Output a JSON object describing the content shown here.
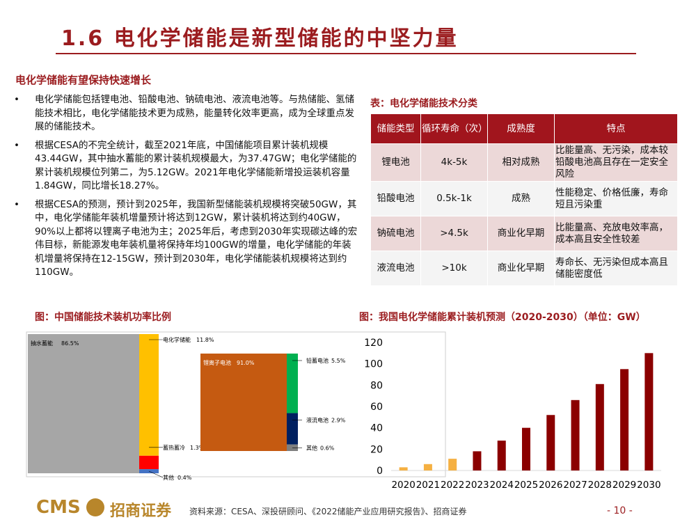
{
  "header": {
    "title": "1.6 电化学储能是新型储能的中坚力量"
  },
  "section": {
    "title": "电化学储能有望保持快速增长",
    "bullets": [
      "电化学储能包括锂电池、铅酸电池、钠硫电池、液流电池等。与热储能、氢储能技术相比，电化学储能技术更为成熟，能量转化效率更高，成为全球重点发展的储能技术。",
      "根据CESA的不完全统计，截至2021年底，中国储能项目累计装机规模43.44GW，其中抽水蓄能的累计装机规模最大，为37.47GW；电化学储能的累计装机规模位列第二，为5.12GW。2021年电化学储能新增投运装机容量1.84GW，同比增长18.27%。",
      "根据CESA的预测，预计到2025年，我国新型储能装机规模将突破50GW，其中，电化学储能年装机增量预计将达到12GW，累计装机将达到约40GW，90%以上都将以锂离子电池为主；2025年后，考虑到2030年实现碳达峰的宏伟目标，新能源发电年装机量将保持年均100GW的增量，电化学储能的年装机增量将保持在12-15GW，预计到2030年，电化学储能装机规模将达到约110GW。"
    ]
  },
  "table": {
    "caption": "表：电化学储能技术分类",
    "columns": [
      "储能类型",
      "循环寿命（次）",
      "成熟度",
      "特点"
    ],
    "rows": [
      [
        "锂电池",
        "4k-5k",
        "相对成熟",
        "比能量高、无污染，成本较铅酸电池高且存在一定安全风险"
      ],
      [
        "铅酸电池",
        "0.5k-1k",
        "成熟",
        "性能稳定、价格低廉，寿命短且污染重"
      ],
      [
        "钠硫电池",
        ">4.5k",
        "商业化早期",
        "比能量高、充放电效率高，成本高且安全性较差"
      ],
      [
        "液流电池",
        ">10k",
        "商业化早期",
        "寿命长、无污染但成本高且储能密度低"
      ]
    ]
  },
  "figure1": {
    "caption": "图：中国储能技术装机功率比例",
    "primary": {
      "names": [
        "抽水蓄能",
        "电化学储能",
        "蓄热蓄冷",
        "其他"
      ],
      "values": [
        86.5,
        11.8,
        1.3,
        0.4
      ],
      "value_labels": [
        "86.5%",
        "11.8%",
        "1.3%",
        "0.4%"
      ],
      "colors": [
        "#a6a6a6",
        "#ffc000",
        "#ff0000",
        "#4472c4"
      ]
    },
    "secondary": {
      "names": [
        "锂离子电池",
        "铅蓄电池",
        "液流电池",
        "其他"
      ],
      "values": [
        91.0,
        5.5,
        2.9,
        0.6
      ],
      "value_labels": [
        "91.0%",
        "5.5%",
        "2.9%",
        "0.6%"
      ],
      "colors": [
        "#c55a11",
        "#00b050",
        "#002060",
        "#7f7f7f"
      ]
    }
  },
  "figure2": {
    "type": "bar",
    "caption": "图：我国电化学储能累计装机预测（2020-2030）（单位：GW）",
    "categories": [
      "2020",
      "2021",
      "2022",
      "2023",
      "2024",
      "2025",
      "2026",
      "2027",
      "2028",
      "2029",
      "2030"
    ],
    "values": [
      3,
      6,
      11,
      18,
      28,
      40,
      52,
      66,
      81,
      95,
      110
    ],
    "colors": [
      "#f5b042",
      "#f5b042",
      "#f5b042",
      "#8b0000",
      "#8b0000",
      "#8b0000",
      "#8b0000",
      "#8b0000",
      "#8b0000",
      "#8b0000",
      "#8b0000"
    ],
    "ylim": [
      0,
      120
    ],
    "yticks": [
      0,
      20,
      40,
      60,
      80,
      100,
      120
    ]
  },
  "footer": {
    "logo": "CMS",
    "brand": "招商证券",
    "source": "资料来源：CESA、深投研顾问、《2022储能产业应用研究报告》、招商证券",
    "page": "- 10 -"
  }
}
